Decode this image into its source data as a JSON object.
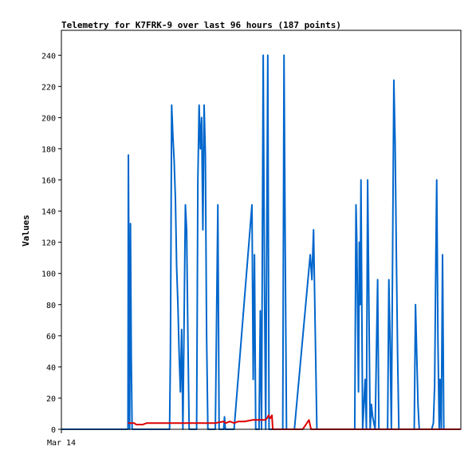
{
  "chart_data": {
    "type": "line",
    "title": "Telemetry for K7FRK-9 over last 96 hours (187 points)",
    "xlabel": "",
    "ylabel": "Values",
    "ylim": [
      0,
      256
    ],
    "yticks": [
      0,
      20,
      40,
      60,
      80,
      100,
      120,
      140,
      160,
      180,
      200,
      220,
      240
    ],
    "xlim": [
      0,
      96
    ],
    "xticks": [
      {
        "x": 0,
        "label": "Mar 14"
      }
    ],
    "grid": false,
    "legend": "none",
    "series": [
      {
        "color": "#0066cc",
        "points": [
          [
            0,
            0
          ],
          [
            16.0,
            0
          ],
          [
            16.1,
            176
          ],
          [
            16.4,
            0
          ],
          [
            16.6,
            132
          ],
          [
            16.8,
            44
          ],
          [
            17.0,
            0
          ],
          [
            26.0,
            0
          ],
          [
            26.2,
            48
          ],
          [
            26.5,
            208
          ],
          [
            26.8,
            188
          ],
          [
            27.1,
            172
          ],
          [
            27.4,
            148
          ],
          [
            27.7,
            104
          ],
          [
            28.0,
            80
          ],
          [
            28.3,
            48
          ],
          [
            28.6,
            24
          ],
          [
            28.9,
            64
          ],
          [
            29.2,
            0
          ],
          [
            29.8,
            144
          ],
          [
            30.1,
            128
          ],
          [
            30.4,
            60
          ],
          [
            30.7,
            0
          ],
          [
            32.5,
            0
          ],
          [
            32.8,
            160
          ],
          [
            33.1,
            208
          ],
          [
            33.4,
            180
          ],
          [
            33.7,
            200
          ],
          [
            34.0,
            128
          ],
          [
            34.3,
            208
          ],
          [
            34.6,
            176
          ],
          [
            34.9,
            60
          ],
          [
            35.2,
            0
          ],
          [
            37.0,
            0
          ],
          [
            37.3,
            72
          ],
          [
            37.6,
            144
          ],
          [
            37.9,
            0
          ],
          [
            39.0,
            0
          ],
          [
            39.2,
            8
          ],
          [
            39.4,
            0
          ],
          [
            41.5,
            0
          ],
          [
            45.8,
            144
          ],
          [
            46.1,
            32
          ],
          [
            46.4,
            112
          ],
          [
            46.7,
            0
          ],
          [
            47.5,
            0
          ],
          [
            47.8,
            76
          ],
          [
            48.1,
            0
          ],
          [
            48.5,
            240
          ],
          [
            48.8,
            96
          ],
          [
            49.1,
            0
          ],
          [
            49.6,
            240
          ],
          [
            49.9,
            0
          ],
          [
            53.2,
            0
          ],
          [
            53.5,
            240
          ],
          [
            53.8,
            112
          ],
          [
            54.1,
            0
          ],
          [
            56.0,
            0
          ],
          [
            59.8,
            112
          ],
          [
            60.2,
            96
          ],
          [
            60.6,
            128
          ],
          [
            61.0,
            64
          ],
          [
            61.4,
            0
          ],
          [
            70.5,
            0
          ],
          [
            70.8,
            144
          ],
          [
            71.0,
            120
          ],
          [
            71.2,
            72
          ],
          [
            71.4,
            24
          ],
          [
            71.6,
            120
          ],
          [
            71.8,
            80
          ],
          [
            72.0,
            160
          ],
          [
            72.2,
            80
          ],
          [
            72.4,
            0
          ],
          [
            73.0,
            32
          ],
          [
            73.3,
            0
          ],
          [
            73.6,
            160
          ],
          [
            73.9,
            80
          ],
          [
            74.2,
            0
          ],
          [
            74.5,
            16
          ],
          [
            74.8,
            8
          ],
          [
            75.1,
            4
          ],
          [
            75.4,
            0
          ],
          [
            76.0,
            96
          ],
          [
            76.3,
            0
          ],
          [
            78.4,
            0
          ],
          [
            78.7,
            96
          ],
          [
            79.0,
            56
          ],
          [
            79.3,
            0
          ],
          [
            79.6,
            112
          ],
          [
            79.9,
            224
          ],
          [
            80.2,
            184
          ],
          [
            80.5,
            112
          ],
          [
            80.8,
            48
          ],
          [
            81.1,
            0
          ],
          [
            84.8,
            0
          ],
          [
            85.1,
            80
          ],
          [
            85.4,
            48
          ],
          [
            85.7,
            16
          ],
          [
            86.0,
            0
          ],
          [
            89.0,
            0
          ],
          [
            89.4,
            4
          ],
          [
            89.7,
            28
          ],
          [
            90.0,
            112
          ],
          [
            90.2,
            160
          ],
          [
            90.5,
            56
          ],
          [
            90.8,
            0
          ],
          [
            91.0,
            32
          ],
          [
            91.3,
            0
          ],
          [
            91.6,
            112
          ],
          [
            91.9,
            0
          ],
          [
            96,
            0
          ]
        ]
      },
      {
        "color": "#dd0000",
        "points": [
          [
            16.0,
            4
          ],
          [
            17.5,
            4
          ],
          [
            18.0,
            3
          ],
          [
            19.5,
            3
          ],
          [
            20.5,
            4
          ],
          [
            22.0,
            4
          ],
          [
            24.0,
            4
          ],
          [
            28.0,
            4
          ],
          [
            31.0,
            4
          ],
          [
            34.0,
            4
          ],
          [
            37.0,
            4
          ],
          [
            39.0,
            5
          ],
          [
            39.5,
            4
          ],
          [
            40.5,
            5
          ],
          [
            41.5,
            4
          ],
          [
            42.5,
            5
          ],
          [
            44.0,
            5
          ],
          [
            46.0,
            6
          ],
          [
            49.0,
            6
          ],
          [
            49.4,
            7
          ],
          [
            49.8,
            9
          ],
          [
            50.2,
            7
          ],
          [
            50.6,
            9
          ],
          [
            50.8,
            0
          ],
          [
            58.0,
            0
          ],
          [
            59.5,
            6
          ],
          [
            60.0,
            0
          ],
          [
            96,
            0
          ]
        ]
      }
    ]
  }
}
